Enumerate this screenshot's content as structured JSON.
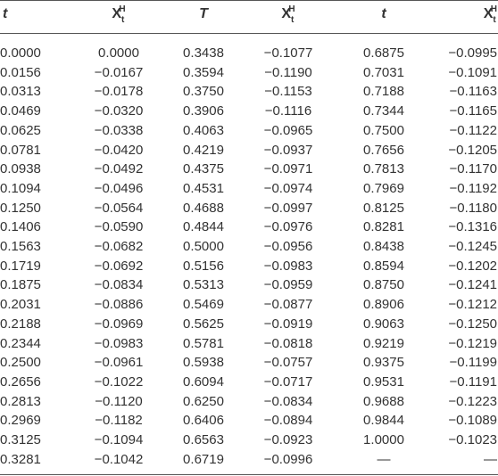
{
  "table": {
    "header": [
      "t",
      {
        "base": "X",
        "sub": "t",
        "sup": "H"
      },
      "T",
      {
        "base": "X",
        "sub": "t",
        "sup": "H"
      },
      "t",
      {
        "base": "X",
        "sub": "t",
        "sup": "H"
      }
    ],
    "rows": [
      [
        "0.0000",
        "0.0000",
        "0.3438",
        "−0.1077",
        "0.6875",
        "−0.0995"
      ],
      [
        "0.0156",
        "−0.0167",
        "0.3594",
        "−0.1190",
        "0.7031",
        "−0.1091"
      ],
      [
        "0.0313",
        "−0.0178",
        "0.3750",
        "−0.1153",
        "0.7188",
        "−0.1163"
      ],
      [
        "0.0469",
        "−0.0320",
        "0.3906",
        "−0.1116",
        "0.7344",
        "−0.1165"
      ],
      [
        "0.0625",
        "−0.0338",
        "0.4063",
        "−0.0965",
        "0.7500",
        "−0.1122"
      ],
      [
        "0.0781",
        "−0.0420",
        "0.4219",
        "−0.0937",
        "0.7656",
        "−0.1205"
      ],
      [
        "0.0938",
        "−0.0492",
        "0.4375",
        "−0.0971",
        "0.7813",
        "−0.1170"
      ],
      [
        "0.1094",
        "−0.0496",
        "0.4531",
        "−0.0974",
        "0.7969",
        "−0.1192"
      ],
      [
        "0.1250",
        "−0.0564",
        "0.4688",
        "−0.0997",
        "0.8125",
        "−0.1180"
      ],
      [
        "0.1406",
        "−0.0590",
        "0.4844",
        "−0.0976",
        "0.8281",
        "−0.1316"
      ],
      [
        "0.1563",
        "−0.0682",
        "0.5000",
        "−0.0956",
        "0.8438",
        "−0.1245"
      ],
      [
        "0.1719",
        "−0.0692",
        "0.5156",
        "−0.0983",
        "0.8594",
        "−0.1202"
      ],
      [
        "0.1875",
        "−0.0834",
        "0.5313",
        "−0.0959",
        "0.8750",
        "−0.1241"
      ],
      [
        "0.2031",
        "−0.0886",
        "0.5469",
        "−0.0877",
        "0.8906",
        "−0.1212"
      ],
      [
        "0.2188",
        "−0.0969",
        "0.5625",
        "−0.0919",
        "0.9063",
        "−0.1250"
      ],
      [
        "0.2344",
        "−0.0983",
        "0.5781",
        "−0.0818",
        "0.9219",
        "−0.1219"
      ],
      [
        "0.2500",
        "−0.0961",
        "0.5938",
        "−0.0757",
        "0.9375",
        "−0.1199"
      ],
      [
        "0.2656",
        "−0.1022",
        "0.6094",
        "−0.0717",
        "0.9531",
        "−0.1191"
      ],
      [
        "0.2813",
        "−0.1120",
        "0.6250",
        "−0.0834",
        "0.9688",
        "−0.1223"
      ],
      [
        "0.2969",
        "−0.1182",
        "0.6406",
        "−0.0894",
        "0.9844",
        "−0.1089"
      ],
      [
        "0.3125",
        "−0.1094",
        "0.6563",
        "−0.0923",
        "1.0000",
        "−0.1023"
      ],
      [
        "0.3281",
        "−0.1042",
        "0.6719",
        "−0.0996",
        "—",
        "—"
      ]
    ]
  }
}
